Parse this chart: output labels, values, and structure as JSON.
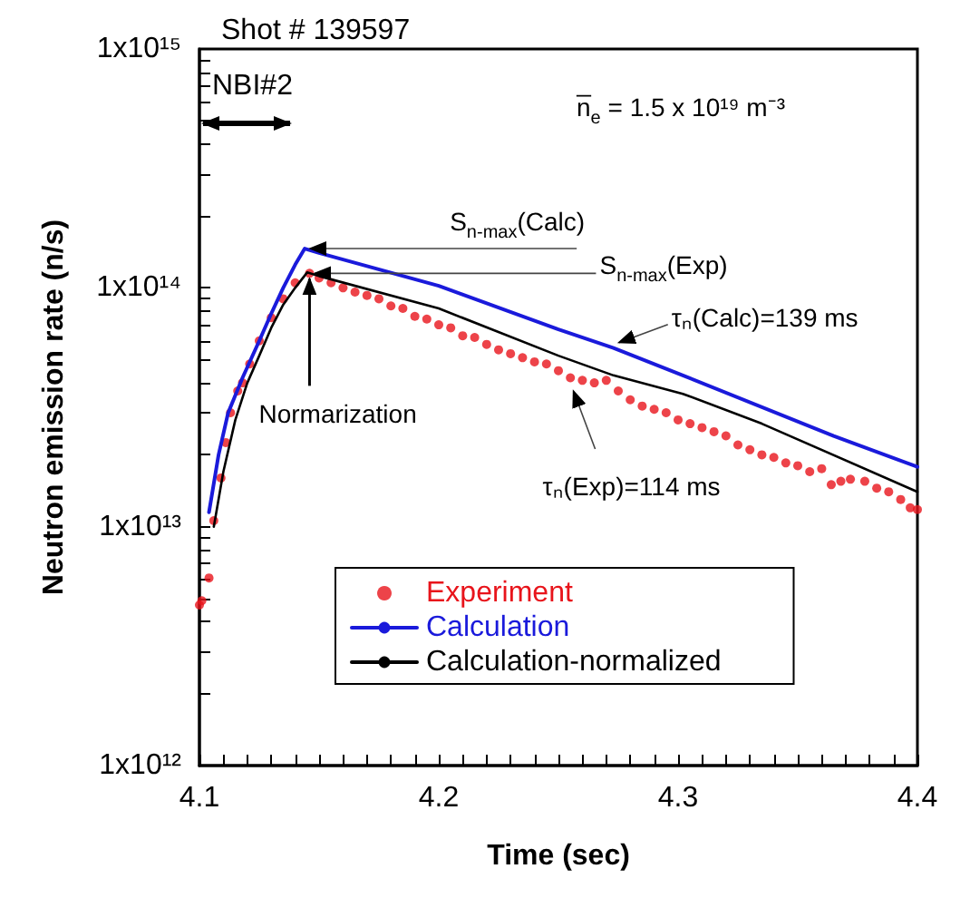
{
  "chart_data": {
    "type": "line",
    "title": "Shot # 139597",
    "xlabel": "Time (sec)",
    "ylabel": "Neutron emission rate (n/s)",
    "log": "y",
    "grid": false,
    "legend": "bottom",
    "xlim": [
      4.1,
      4.4
    ],
    "xticks": [
      4.1,
      {
        "value": 4.11,
        "label": null
      },
      {
        "value": 4.12,
        "label": null
      },
      {
        "value": 4.13,
        "label": null
      },
      {
        "value": 4.14,
        "label": null
      },
      {
        "value": 4.15,
        "label": null
      },
      {
        "value": 4.16,
        "label": null
      },
      {
        "value": 4.17,
        "label": null
      },
      {
        "value": 4.18,
        "label": null
      },
      {
        "value": 4.19,
        "label": null
      },
      4.2,
      {
        "value": 4.21,
        "label": null
      },
      {
        "value": 4.22,
        "label": null
      },
      {
        "value": 4.23,
        "label": null
      },
      {
        "value": 4.24,
        "label": null
      },
      {
        "value": 4.25,
        "label": null
      },
      {
        "value": 4.26,
        "label": null
      },
      {
        "value": 4.27,
        "label": null
      },
      {
        "value": 4.28,
        "label": null
      },
      {
        "value": 4.29,
        "label": null
      },
      4.3,
      {
        "value": 4.31,
        "label": null
      },
      {
        "value": 4.32,
        "label": null
      },
      {
        "value": 4.33,
        "label": null
      },
      {
        "value": 4.34,
        "label": null
      },
      {
        "value": 4.35,
        "label": null
      },
      {
        "value": 4.36,
        "label": null
      },
      {
        "value": 4.37,
        "label": null
      },
      {
        "value": 4.38,
        "label": null
      },
      {
        "value": 4.39,
        "label": null
      },
      4.4
    ],
    "ylim": [
      1000000000000.0,
      1000000000000000.0
    ],
    "yticks": [
      {
        "value": 1000000000000.0,
        "label": "1x10¹²"
      },
      {
        "value": 2000000000000.0,
        "label": null
      },
      {
        "value": 3000000000000.0,
        "label": null
      },
      {
        "value": 4000000000000.0,
        "label": null
      },
      {
        "value": 5000000000000.0,
        "label": null
      },
      {
        "value": 6000000000000.0,
        "label": null
      },
      {
        "value": 7000000000000.0,
        "label": null
      },
      {
        "value": 8000000000000.0,
        "label": null
      },
      {
        "value": 9000000000000.0,
        "label": null
      },
      {
        "value": 10000000000000.0,
        "label": "1x10¹³"
      },
      {
        "value": 20000000000000.0,
        "label": null
      },
      {
        "value": 30000000000000.0,
        "label": null
      },
      {
        "value": 40000000000000.0,
        "label": null
      },
      {
        "value": 50000000000000.0,
        "label": null
      },
      {
        "value": 60000000000000.0,
        "label": null
      },
      {
        "value": 70000000000000.0,
        "label": null
      },
      {
        "value": 80000000000000.0,
        "label": null
      },
      {
        "value": 90000000000000.0,
        "label": null
      },
      {
        "value": 100000000000000.0,
        "label": "1x10¹⁴"
      },
      {
        "value": 200000000000000.0,
        "label": null
      },
      {
        "value": 300000000000000.0,
        "label": null
      },
      {
        "value": 400000000000000.0,
        "label": null
      },
      {
        "value": 500000000000000.0,
        "label": null
      },
      {
        "value": 600000000000000.0,
        "label": null
      },
      {
        "value": 700000000000000.0,
        "label": null
      },
      {
        "value": 800000000000000.0,
        "label": null
      },
      {
        "value": 900000000000000.0,
        "label": null
      },
      {
        "value": 1000000000000000.0,
        "label": "1x10¹⁵"
      }
    ],
    "annotations": [
      "NBI#2",
      "n̅$_{e}$ = 1.5 x 10¹⁹ m⁻³",
      {
        "text": "S$_{n-max}$(Calc)",
        "x": 4.144,
        "y": 146000000000000.0
      },
      {
        "text": "S$_{n-max}$(Exp)",
        "x": 4.146,
        "y": 115000000000000.0
      },
      {
        "text": "Normarization",
        "x": 4.146,
        "y": 115000000000000.0
      },
      {
        "text": "τₙ(Calc)=139 ms",
        "x": 4.273,
        "y": 56000000000000.0
      },
      {
        "text": "τₙ(Exp)=114 ms",
        "x": 4.254,
        "y": 39000000000000.0
      }
    ],
    "series": [
      {
        "name": "Experiment",
        "type": "scatter",
        "marker": "circle",
        "color": "#e8141b",
        "x": [
          4.1,
          4.101,
          4.104,
          4.106,
          4.109,
          4.111,
          4.113,
          4.116,
          4.118,
          4.121,
          4.125,
          4.13,
          4.135,
          4.14,
          4.146,
          4.15,
          4.155,
          4.16,
          4.165,
          4.17,
          4.175,
          4.18,
          4.185,
          4.19,
          4.195,
          4.2,
          4.205,
          4.21,
          4.215,
          4.22,
          4.225,
          4.23,
          4.235,
          4.24,
          4.245,
          4.25,
          4.255,
          4.26,
          4.265,
          4.27,
          4.275,
          4.28,
          4.285,
          4.29,
          4.295,
          4.3,
          4.305,
          4.31,
          4.315,
          4.32,
          4.325,
          4.33,
          4.335,
          4.34,
          4.345,
          4.35,
          4.355,
          4.36,
          4.364,
          4.368,
          4.372,
          4.378,
          4.383,
          4.388,
          4.393,
          4.397,
          4.4
        ],
        "values": [
          4700000000000.0,
          4900000000000.0,
          6100000000000.0,
          10600000000000.0,
          16000000000000.0,
          22500000000000.0,
          30000000000000.0,
          37000000000000.0,
          40000000000000.0,
          48000000000000.0,
          60000000000000.0,
          75000000000000.0,
          90000000000000.0,
          105000000000000.0,
          115000000000000.0,
          110000000000000.0,
          105000000000000.0,
          100000000000000.0,
          96000000000000.0,
          93000000000000.0,
          90000000000000.0,
          84000000000000.0,
          82000000000000.0,
          76000000000000.0,
          74000000000000.0,
          70000000000000.0,
          68000000000000.0,
          63000000000000.0,
          62000000000000.0,
          58000000000000.0,
          55000000000000.0,
          53000000000000.0,
          51000000000000.0,
          49000000000000.0,
          48000000000000.0,
          45000000000000.0,
          42000000000000.0,
          41000000000000.0,
          40000000000000.0,
          41000000000000.0,
          37000000000000.0,
          34000000000000.0,
          32000000000000.0,
          31000000000000.0,
          30000000000000.0,
          28000000000000.0,
          27000000000000.0,
          26000000000000.0,
          25000000000000.0,
          24000000000000.0,
          22000000000000.0,
          21000000000000.0,
          20000000000000.0,
          19500000000000.0,
          18500000000000.0,
          18000000000000.0,
          17000000000000.0,
          17500000000000.0,
          15000000000000.0,
          15500000000000.0,
          15800000000000.0,
          15500000000000.0,
          14500000000000.0,
          14000000000000.0,
          13000000000000.0,
          12000000000000.0,
          11800000000000.0
        ]
      },
      {
        "name": "Calculation",
        "marker": "none",
        "line_style": "solid",
        "color": "#1a1adb",
        "x": [
          4.104,
          4.108,
          4.112,
          4.118,
          4.125,
          4.13,
          4.135,
          4.14,
          4.144,
          4.15,
          4.2,
          4.25,
          4.273,
          4.302,
          4.365,
          4.4
        ],
        "values": [
          11500000000000.0,
          20000000000000.0,
          30000000000000.0,
          42000000000000.0,
          60000000000000.0,
          78000000000000.0,
          100000000000000.0,
          125000000000000.0,
          146000000000000.0,
          140000000000000.0,
          102000000000000.0,
          67000000000000.0,
          56000000000000.0,
          43000000000000.0,
          24000000000000.0,
          17800000000000.0
        ]
      },
      {
        "name": "Calculation-normalized",
        "marker": "none",
        "line_style": "solid",
        "color": "#000000",
        "x": [
          4.106,
          4.11,
          4.115,
          4.12,
          4.125,
          4.13,
          4.135,
          4.14,
          4.145,
          4.15,
          4.2,
          4.25,
          4.273,
          4.302,
          4.335,
          4.4
        ],
        "values": [
          10000000000000.0,
          17000000000000.0,
          28000000000000.0,
          40000000000000.0,
          52000000000000.0,
          68000000000000.0,
          85000000000000.0,
          100000000000000.0,
          116000000000000.0,
          112000000000000.0,
          82000000000000.0,
          52000000000000.0,
          43000000000000.0,
          36000000000000.0,
          27000000000000.0,
          14000000000000.0
        ]
      }
    ]
  }
}
